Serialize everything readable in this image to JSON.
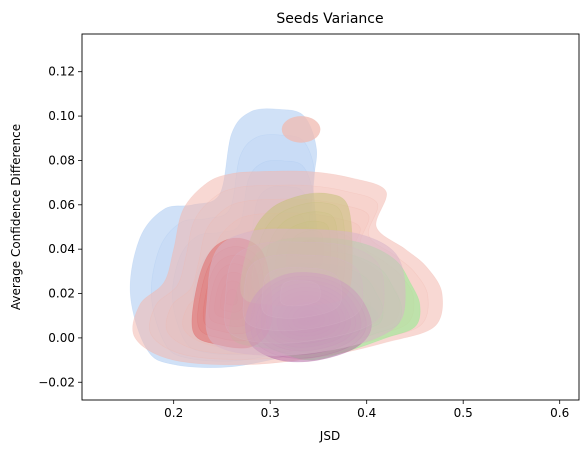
{
  "chart_data": {
    "type": "kde-density",
    "title": "Seeds Variance",
    "xlabel": "JSD",
    "ylabel": "Average Confidence Difference",
    "xlim": [
      0.105,
      0.62
    ],
    "ylim": [
      -0.028,
      0.137
    ],
    "x_ticks": [
      0.2,
      0.3,
      0.4,
      0.5,
      0.6
    ],
    "x_tick_labels": [
      "0.2",
      "0.3",
      "0.4",
      "0.5",
      "0.6"
    ],
    "y_ticks": [
      -0.02,
      0.0,
      0.02,
      0.04,
      0.06,
      0.08,
      0.1,
      0.12
    ],
    "y_tick_labels": [
      "−0.02",
      "0.00",
      "0.02",
      "0.04",
      "0.06",
      "0.08",
      "0.10",
      "0.12"
    ],
    "grid": false,
    "legend": "none",
    "series": [
      {
        "color": "#a9c9f0",
        "levels": 8,
        "outer_contour": [
          [
            0.172,
            -0.005
          ],
          [
            0.2,
            -0.012
          ],
          [
            0.26,
            -0.013
          ],
          [
            0.33,
            -0.007
          ],
          [
            0.38,
            -0.002
          ],
          [
            0.4,
            0.005
          ],
          [
            0.41,
            0.012
          ],
          [
            0.36,
            0.03
          ],
          [
            0.345,
            0.065
          ],
          [
            0.348,
            0.085
          ],
          [
            0.335,
            0.1
          ],
          [
            0.31,
            0.103
          ],
          [
            0.28,
            0.102
          ],
          [
            0.26,
            0.092
          ],
          [
            0.248,
            0.065
          ],
          [
            0.22,
            0.06
          ],
          [
            0.19,
            0.058
          ],
          [
            0.165,
            0.045
          ],
          [
            0.155,
            0.02
          ]
        ],
        "peak": [
          0.33,
          0.01
        ]
      },
      {
        "color": "#f2b8ae",
        "levels": 10,
        "outer_contour": [
          [
            0.16,
            0.0
          ],
          [
            0.2,
            -0.01
          ],
          [
            0.28,
            -0.012
          ],
          [
            0.36,
            -0.008
          ],
          [
            0.42,
            -0.002
          ],
          [
            0.47,
            0.005
          ],
          [
            0.478,
            0.02
          ],
          [
            0.462,
            0.032
          ],
          [
            0.44,
            0.04
          ],
          [
            0.41,
            0.05
          ],
          [
            0.42,
            0.066
          ],
          [
            0.385,
            0.072
          ],
          [
            0.34,
            0.075
          ],
          [
            0.29,
            0.075
          ],
          [
            0.26,
            0.074
          ],
          [
            0.235,
            0.07
          ],
          [
            0.21,
            0.058
          ],
          [
            0.2,
            0.04
          ],
          [
            0.19,
            0.025
          ],
          [
            0.165,
            0.015
          ]
        ],
        "peak": [
          0.33,
          0.012
        ]
      },
      {
        "color": "#90ee90",
        "levels": 6,
        "outer_contour": [
          [
            0.26,
            0.0
          ],
          [
            0.3,
            -0.005
          ],
          [
            0.34,
            -0.01
          ],
          [
            0.38,
            -0.006
          ],
          [
            0.42,
            0.0
          ],
          [
            0.45,
            0.005
          ],
          [
            0.455,
            0.015
          ],
          [
            0.445,
            0.025
          ],
          [
            0.43,
            0.035
          ],
          [
            0.4,
            0.042
          ],
          [
            0.36,
            0.045
          ],
          [
            0.31,
            0.044
          ],
          [
            0.28,
            0.035
          ],
          [
            0.265,
            0.02
          ]
        ],
        "peak": [
          0.34,
          0.01
        ]
      },
      {
        "color": "#e06a6a",
        "levels": 7,
        "outer_contour": [
          [
            0.22,
            0.003
          ],
          [
            0.245,
            -0.003
          ],
          [
            0.28,
            -0.004
          ],
          [
            0.3,
            0.005
          ],
          [
            0.3,
            0.025
          ],
          [
            0.29,
            0.04
          ],
          [
            0.265,
            0.045
          ],
          [
            0.24,
            0.04
          ],
          [
            0.225,
            0.025
          ]
        ],
        "peak": [
          0.26,
          0.018
        ]
      },
      {
        "color": "#c7c17a",
        "levels": 6,
        "outer_contour": [
          [
            0.27,
            0.02
          ],
          [
            0.3,
            0.015
          ],
          [
            0.35,
            0.015
          ],
          [
            0.38,
            0.02
          ],
          [
            0.385,
            0.04
          ],
          [
            0.38,
            0.06
          ],
          [
            0.36,
            0.065
          ],
          [
            0.33,
            0.064
          ],
          [
            0.3,
            0.058
          ],
          [
            0.28,
            0.045
          ]
        ],
        "peak": [
          0.34,
          0.04
        ]
      },
      {
        "color": "#b56ba6",
        "levels": 12,
        "outer_contour": [
          [
            0.28,
            -0.003
          ],
          [
            0.31,
            -0.01
          ],
          [
            0.35,
            -0.01
          ],
          [
            0.39,
            -0.004
          ],
          [
            0.405,
            0.006
          ],
          [
            0.39,
            0.02
          ],
          [
            0.36,
            0.028
          ],
          [
            0.32,
            0.029
          ],
          [
            0.29,
            0.022
          ],
          [
            0.275,
            0.01
          ]
        ],
        "peak": [
          0.34,
          0.009
        ]
      },
      {
        "color": "#d8b4c8",
        "levels": 5,
        "outer_contour": [
          [
            0.24,
            -0.002
          ],
          [
            0.3,
            -0.008
          ],
          [
            0.38,
            -0.004
          ],
          [
            0.43,
            0.005
          ],
          [
            0.44,
            0.02
          ],
          [
            0.43,
            0.038
          ],
          [
            0.39,
            0.047
          ],
          [
            0.33,
            0.049
          ],
          [
            0.28,
            0.048
          ],
          [
            0.245,
            0.04
          ],
          [
            0.235,
            0.02
          ]
        ],
        "peak": [
          0.33,
          0.02
        ]
      }
    ],
    "extra_blobs": [
      {
        "color": "#f0b9b0",
        "center": [
          0.332,
          0.094
        ],
        "rx": 0.02,
        "ry": 0.006
      }
    ]
  }
}
